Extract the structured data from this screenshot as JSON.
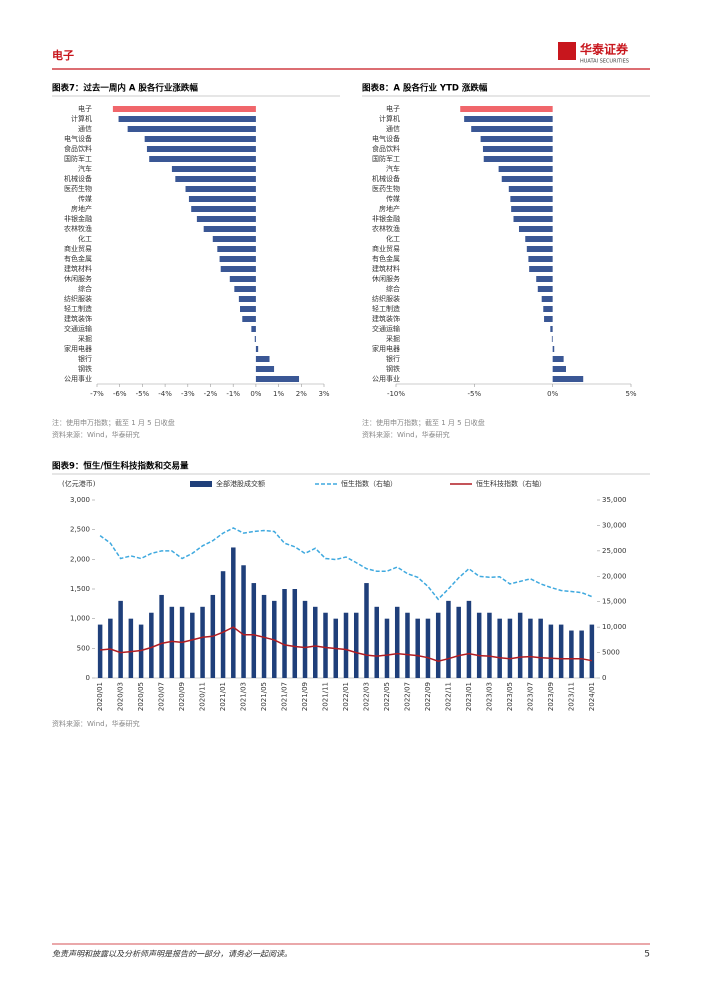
{
  "header": {
    "section": "电子",
    "logo_cn": "华泰证券",
    "logo_en": "HUATAI SECURITIES"
  },
  "chart_data": [
    {
      "type": "hbar",
      "title": "图表7：过去一周内 A 股各行业涨跌幅",
      "categories": [
        "电子",
        "计算机",
        "通信",
        "电气设备",
        "食品饮料",
        "国防军工",
        "汽车",
        "机械设备",
        "医药生物",
        "传媒",
        "房地产",
        "非银金融",
        "农林牧渔",
        "化工",
        "商业贸易",
        "有色金属",
        "建筑材料",
        "休闲服务",
        "综合",
        "纺织服装",
        "轻工制造",
        "建筑装饰",
        "交通运输",
        "采掘",
        "家用电器",
        "银行",
        "钢铁",
        "公用事业"
      ],
      "values": [
        -6.3,
        -6.05,
        -5.65,
        -4.9,
        -4.8,
        -4.7,
        -3.7,
        -3.55,
        -3.1,
        -2.95,
        -2.85,
        -2.6,
        -2.3,
        -1.9,
        -1.7,
        -1.6,
        -1.55,
        -1.15,
        -0.95,
        -0.75,
        -0.7,
        -0.6,
        -0.2,
        -0.05,
        0.1,
        0.6,
        0.8,
        1.9
      ],
      "colors": [
        "#f0666b",
        "#3a5795",
        "#3a5795",
        "#3a5795",
        "#3a5795",
        "#3a5795",
        "#3a5795",
        "#3a5795",
        "#3a5795",
        "#3a5795",
        "#3a5795",
        "#3a5795",
        "#3a5795",
        "#3a5795",
        "#3a5795",
        "#3a5795",
        "#3a5795",
        "#3a5795",
        "#3a5795",
        "#3a5795",
        "#3a5795",
        "#3a5795",
        "#3a5795",
        "#3a5795",
        "#3a5795",
        "#3a5795",
        "#3a5795",
        "#3a5795"
      ],
      "xlim": [
        -7,
        3
      ],
      "xticks": [
        {
          "value": -7,
          "label": "-7%"
        },
        {
          "value": -6,
          "label": "-6%"
        },
        {
          "value": -5,
          "label": "-5%"
        },
        {
          "value": -4,
          "label": "-4%"
        },
        {
          "value": -3,
          "label": "-3%"
        },
        {
          "value": -2,
          "label": "-2%"
        },
        {
          "value": -1,
          "label": "-1%"
        },
        {
          "value": 0,
          "label": "0%"
        },
        {
          "value": 1,
          "label": "1%"
        },
        {
          "value": 2,
          "label": "2%"
        },
        {
          "value": 3,
          "label": "3%"
        }
      ],
      "note": "注：使用申万指数；截至 1 月 5 日收盘",
      "source": "资料来源：Wind，华泰研究"
    },
    {
      "type": "hbar",
      "title": "图表8：A 股各行业 YTD 涨跌幅",
      "categories": [
        "电子",
        "计算机",
        "通信",
        "电气设备",
        "食品饮料",
        "国防军工",
        "汽车",
        "机械设备",
        "医药生物",
        "传媒",
        "房地产",
        "非银金融",
        "农林牧渔",
        "化工",
        "商业贸易",
        "有色金属",
        "建筑材料",
        "休闲服务",
        "综合",
        "纺织服装",
        "轻工制造",
        "建筑装饰",
        "交通运输",
        "采掘",
        "家用电器",
        "银行",
        "钢铁",
        "公用事业"
      ],
      "values": [
        -5.9,
        -5.65,
        -5.2,
        -4.6,
        -4.45,
        -4.4,
        -3.45,
        -3.25,
        -2.8,
        -2.7,
        -2.65,
        -2.5,
        -2.15,
        -1.75,
        -1.65,
        -1.55,
        -1.5,
        -1.05,
        -0.95,
        -0.7,
        -0.6,
        -0.55,
        -0.15,
        -0.05,
        0.1,
        0.7,
        0.85,
        1.95
      ],
      "colors": [
        "#f0666b",
        "#3a5795",
        "#3a5795",
        "#3a5795",
        "#3a5795",
        "#3a5795",
        "#3a5795",
        "#3a5795",
        "#3a5795",
        "#3a5795",
        "#3a5795",
        "#3a5795",
        "#3a5795",
        "#3a5795",
        "#3a5795",
        "#3a5795",
        "#3a5795",
        "#3a5795",
        "#3a5795",
        "#3a5795",
        "#3a5795",
        "#3a5795",
        "#3a5795",
        "#3a5795",
        "#3a5795",
        "#3a5795",
        "#3a5795",
        "#3a5795"
      ],
      "xlim": [
        -10,
        5
      ],
      "xticks": [
        {
          "value": -10,
          "label": "-10%"
        },
        {
          "value": -5,
          "label": "-5%"
        },
        {
          "value": 0,
          "label": "0%"
        },
        {
          "value": 5,
          "label": "5%"
        }
      ],
      "note": "注：使用申万指数；截至 1 月 5 日收盘",
      "source": "资料来源：Wind，华泰研究"
    },
    {
      "type": "combo",
      "title": "图表9：恒生/恒生科技指数和交易量",
      "y_label": "(亿元港币)",
      "categories": [
        "2020/01",
        null,
        "2020/03",
        null,
        "2020/05",
        null,
        "2020/07",
        null,
        "2020/09",
        null,
        "2020/11",
        null,
        "2021/01",
        null,
        "2021/03",
        null,
        "2021/05",
        null,
        "2021/07",
        null,
        "2021/09",
        null,
        "2021/11",
        null,
        "2022/01",
        null,
        "2022/03",
        null,
        "2022/05",
        null,
        "2022/07",
        null,
        "2022/09",
        null,
        "2022/11",
        null,
        "2023/01",
        null,
        "2023/03",
        null,
        "2023/05",
        null,
        "2023/07",
        null,
        "2023/09",
        null,
        "2023/11",
        null,
        "2024/01"
      ],
      "series": [
        {
          "name": "全部港股成交额",
          "type": "bar",
          "color": "#1f3f7a",
          "values": [
            900,
            1000,
            1300,
            1000,
            900,
            1100,
            1400,
            1200,
            1200,
            1100,
            1200,
            1400,
            1800,
            2200,
            1900,
            1600,
            1400,
            1300,
            1500,
            1500,
            1300,
            1200,
            1100,
            1000,
            1100,
            1100,
            1600,
            1200,
            1000,
            1200,
            1100,
            1000,
            1000,
            1100,
            1300,
            1200,
            1300,
            1100,
            1100,
            1000,
            1000,
            1100,
            1000,
            1000,
            900,
            900,
            800,
            800,
            900
          ]
        },
        {
          "name": "恒生指数（右轴）",
          "type": "line",
          "axis": "y2",
          "color": "#3fa9df",
          "line_style": "dashed",
          "values": [
            28000,
            26500,
            23500,
            24000,
            23500,
            24500,
            25000,
            25000,
            23500,
            24500,
            26000,
            27000,
            28500,
            29500,
            28500,
            28800,
            29000,
            28800,
            26500,
            25800,
            24500,
            25500,
            23500,
            23300,
            23800,
            22700,
            21500,
            21000,
            21000,
            21800,
            20500,
            19800,
            18000,
            15500,
            17500,
            19700,
            21500,
            20000,
            19800,
            19900,
            18500,
            19000,
            19500,
            18500,
            17800,
            17200,
            17000,
            16800,
            16000
          ]
        },
        {
          "name": "恒生科技指数（右轴）",
          "type": "line",
          "axis": "y2",
          "color": "#b01c22",
          "line_style": "solid",
          "values": [
            5500,
            5700,
            5000,
            5200,
            5400,
            6000,
            6800,
            7200,
            7000,
            7500,
            8000,
            8200,
            9000,
            10000,
            8500,
            8500,
            8000,
            7500,
            6500,
            6200,
            6000,
            6300,
            6000,
            5800,
            5600,
            5000,
            4500,
            4300,
            4500,
            4800,
            4600,
            4400,
            4000,
            3300,
            3800,
            4400,
            4800,
            4400,
            4300,
            4000,
            3800,
            4100,
            4200,
            4000,
            3900,
            3800,
            3800,
            3800,
            3400
          ]
        }
      ],
      "ylim": [
        0,
        3000
      ],
      "yticks": [
        0,
        500,
        {
          "value": 1000,
          "label": "1,000"
        },
        {
          "value": 1500,
          "label": "1,500"
        },
        {
          "value": 2000,
          "label": "2,000"
        },
        {
          "value": 2500,
          "label": "2,500"
        },
        {
          "value": 3000,
          "label": "3,000"
        }
      ],
      "y2lim": [
        0,
        35000
      ],
      "y2ticks": [
        0,
        {
          "value": 5000,
          "label": "5000"
        },
        {
          "value": 10000,
          "label": "10,000"
        },
        {
          "value": 15000,
          "label": "15,000"
        },
        {
          "value": 20000,
          "label": "20,000"
        },
        {
          "value": 25000,
          "label": "25,000"
        },
        {
          "value": 30000,
          "label": "30,000"
        },
        {
          "value": 35000,
          "label": "35,000"
        }
      ],
      "source": "资料来源：Wind，华泰研究"
    }
  ],
  "footer": {
    "disclaimer": "免责声明和披露以及分析师声明是报告的一部分，请务必一起阅读。",
    "page": 5
  }
}
